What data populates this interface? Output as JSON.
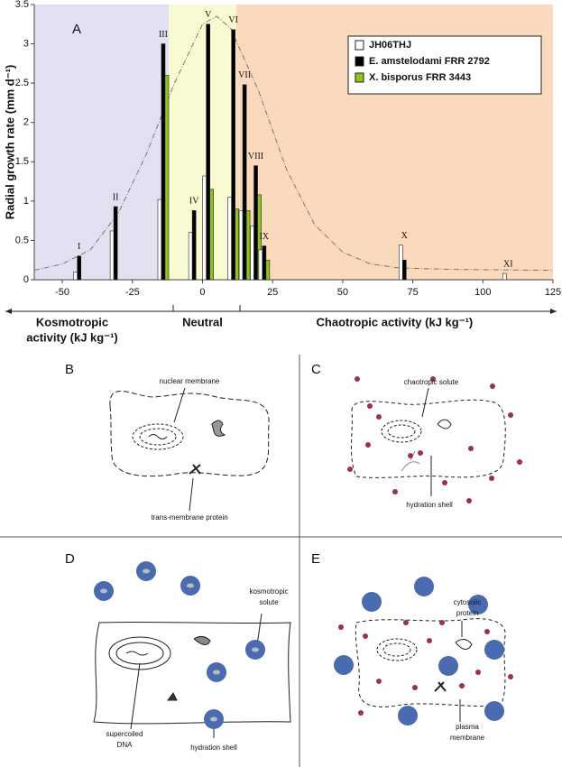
{
  "chart_data": {
    "type": "bar",
    "panel": "A",
    "ylabel": "Radial growth rate (mm d⁻¹)",
    "x": [
      -44,
      -31,
      -14,
      -3,
      2,
      11,
      15,
      19,
      22,
      72,
      109
    ],
    "group_labels": [
      "I",
      "II",
      "III",
      "IV",
      "V",
      "VI",
      "VII",
      "VIII",
      "IX",
      "X",
      "XI"
    ],
    "series": [
      {
        "name": "JH06THJ",
        "color": "#ffffff",
        "values": [
          0.1,
          0.62,
          1.02,
          0.6,
          1.32,
          1.05,
          0.88,
          0.68,
          0.38,
          0.44,
          0.08
        ]
      },
      {
        "name": "E. amstelodami FRR 2792",
        "color": "#000000",
        "values": [
          0.3,
          0.93,
          3.0,
          0.88,
          3.25,
          3.18,
          2.48,
          1.45,
          0.43,
          0.25,
          null
        ]
      },
      {
        "name": "X. bisporus FRR 3443",
        "color": "#8fc31f",
        "values": [
          null,
          null,
          2.6,
          null,
          1.15,
          0.9,
          0.88,
          1.08,
          0.25,
          null,
          null
        ]
      }
    ],
    "curve": {
      "color": "#777777",
      "x": [
        -60,
        -50,
        -40,
        -30,
        -20,
        -10,
        0,
        5,
        10,
        20,
        30,
        40,
        50,
        60,
        70,
        90,
        125
      ],
      "values": [
        0.12,
        0.2,
        0.38,
        0.85,
        1.6,
        2.5,
        3.25,
        3.35,
        3.2,
        2.4,
        1.4,
        0.7,
        0.35,
        0.2,
        0.15,
        0.13,
        0.12
      ]
    },
    "regions": [
      {
        "xlim": [
          -60,
          -12
        ],
        "color": "#e3e0f2",
        "label": [
          "Kosmotropic",
          "activity (kJ kg⁻¹)"
        ]
      },
      {
        "xlim": [
          -12,
          12
        ],
        "color": "#fafad2",
        "label": [
          "Neutral"
        ]
      },
      {
        "xlim": [
          12,
          125
        ],
        "color": "#fbd9bd",
        "label": [
          "Chaotropic activity (kJ kg⁻¹)"
        ]
      }
    ],
    "xlim": [
      -60,
      125
    ],
    "xticks": [
      -50,
      -25,
      0,
      25,
      50,
      75,
      100,
      125
    ],
    "ylim": [
      0,
      3.5
    ],
    "yticks": [
      0,
      0.5,
      1,
      1.5,
      2,
      2.5,
      3,
      3.5
    ],
    "legend": "upper right"
  },
  "panels": [
    {
      "letter": "B",
      "labels": [
        [
          "nuclear membrane"
        ],
        [
          "trans-membrane protein"
        ]
      ]
    },
    {
      "letter": "C",
      "labels": [
        [
          "chaotropic solute"
        ],
        [
          "hydration shell"
        ]
      ]
    },
    {
      "letter": "D",
      "labels": [
        [
          "kosmotropic",
          "solute"
        ],
        [
          "supercoiled",
          "DNA"
        ],
        [
          "hydration shell"
        ]
      ]
    },
    {
      "letter": "E",
      "labels": [
        [
          "cytosolic",
          "protein"
        ],
        [
          "plasma",
          "membrane"
        ]
      ]
    }
  ]
}
